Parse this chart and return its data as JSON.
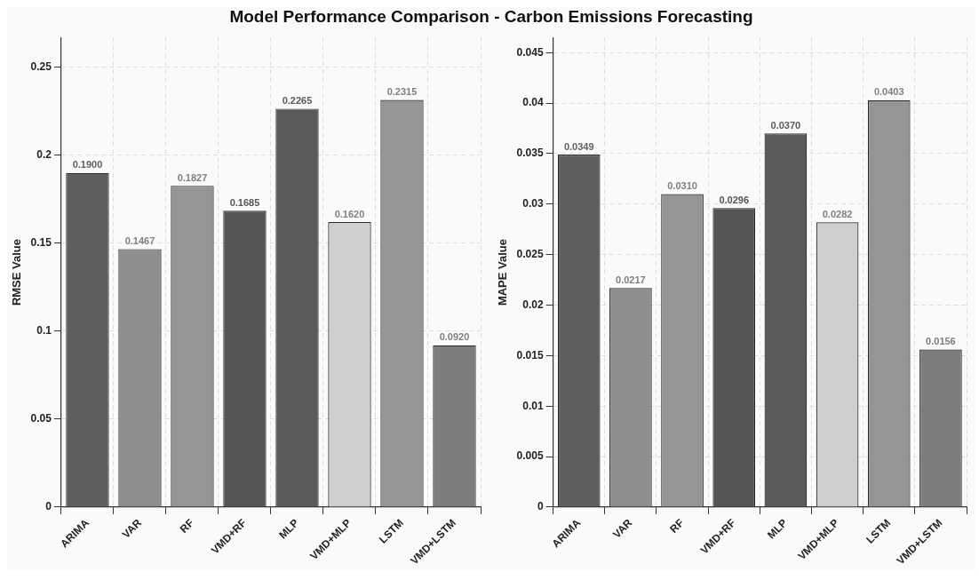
{
  "chart_data": [
    {
      "type": "bar",
      "title": "Model Performance Comparison - Carbon Emissions Forecasting",
      "ylabel": "RMSE Value",
      "categories": [
        "ARIMA",
        "VAR",
        "RF",
        "VMD+RF",
        "MLP",
        "VMD+MLP",
        "LSTM",
        "VMD+LSTM"
      ],
      "values": [
        0.19,
        0.1467,
        0.1827,
        0.1685,
        0.2265,
        0.162,
        0.2315,
        0.092
      ],
      "value_labels": [
        "0.1900",
        "0.1467",
        "0.1827",
        "0.1685",
        "0.2265",
        "0.1620",
        "0.2315",
        "0.0920"
      ],
      "colors": [
        "#5f5f5f",
        "#8e8e8e",
        "#959595",
        "#555555",
        "#5a5a5a",
        "#cfcfcf",
        "#959595",
        "#7d7d7d"
      ],
      "ylim": [
        0,
        0.267
      ],
      "yticks": [
        0,
        0.05,
        0.1,
        0.15,
        0.2,
        0.25
      ],
      "grid": true,
      "legend": false
    },
    {
      "type": "bar",
      "ylabel": "MAPE Value",
      "categories": [
        "ARIMA",
        "VAR",
        "RF",
        "VMD+RF",
        "MLP",
        "VMD+MLP",
        "LSTM",
        "VMD+LSTM"
      ],
      "values": [
        0.0349,
        0.0217,
        0.031,
        0.0296,
        0.037,
        0.0282,
        0.0403,
        0.0156
      ],
      "value_labels": [
        "0.0349",
        "0.0217",
        "0.0310",
        "0.0296",
        "0.0370",
        "0.0282",
        "0.0403",
        "0.0156"
      ],
      "colors": [
        "#5f5f5f",
        "#8e8e8e",
        "#959595",
        "#555555",
        "#5a5a5a",
        "#cfcfcf",
        "#959595",
        "#7d7d7d"
      ],
      "ylim": [
        0,
        0.0465
      ],
      "yticks": [
        0,
        0.005,
        0.01,
        0.015,
        0.02,
        0.025,
        0.03,
        0.035,
        0.04,
        0.045
      ],
      "grid": true,
      "legend": false
    }
  ]
}
